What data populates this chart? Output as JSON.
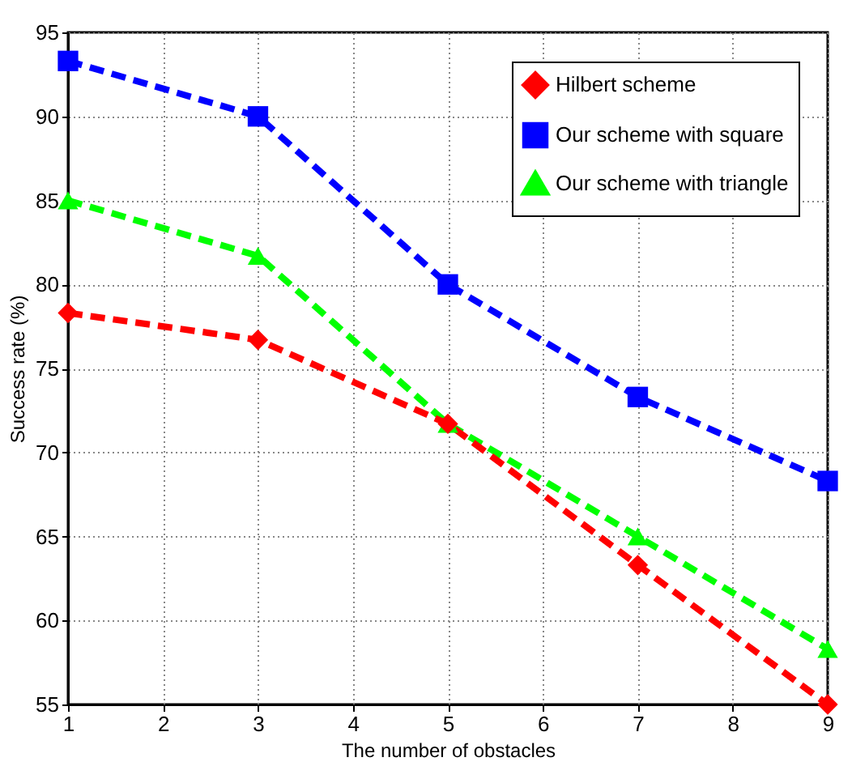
{
  "chart_data": {
    "type": "line",
    "xlabel": "The number of obstacles",
    "ylabel": "Success rate (%)",
    "x": [
      1,
      3,
      5,
      7,
      9
    ],
    "series": [
      {
        "name": "Hilbert scheme",
        "color": "#ff0000",
        "marker": "diamond",
        "values": [
          78.3,
          76.7,
          71.7,
          63.3,
          55
        ]
      },
      {
        "name": "Our scheme with square",
        "color": "#0000ff",
        "marker": "square",
        "values": [
          93.3,
          90,
          80,
          73.3,
          68.3
        ]
      },
      {
        "name": "Our scheme with triangle",
        "color": "#00ff00",
        "marker": "triangle",
        "values": [
          85,
          81.7,
          71.7,
          65,
          58.3
        ]
      }
    ],
    "xlim": [
      1,
      9
    ],
    "xticks": [
      1,
      2,
      3,
      4,
      5,
      6,
      7,
      8,
      9
    ],
    "ylim": [
      55,
      95
    ],
    "yticks": [
      55,
      60,
      65,
      70,
      75,
      80,
      85,
      90,
      95
    ],
    "grid": true,
    "legend": "top right",
    "line_style": "dashed"
  }
}
